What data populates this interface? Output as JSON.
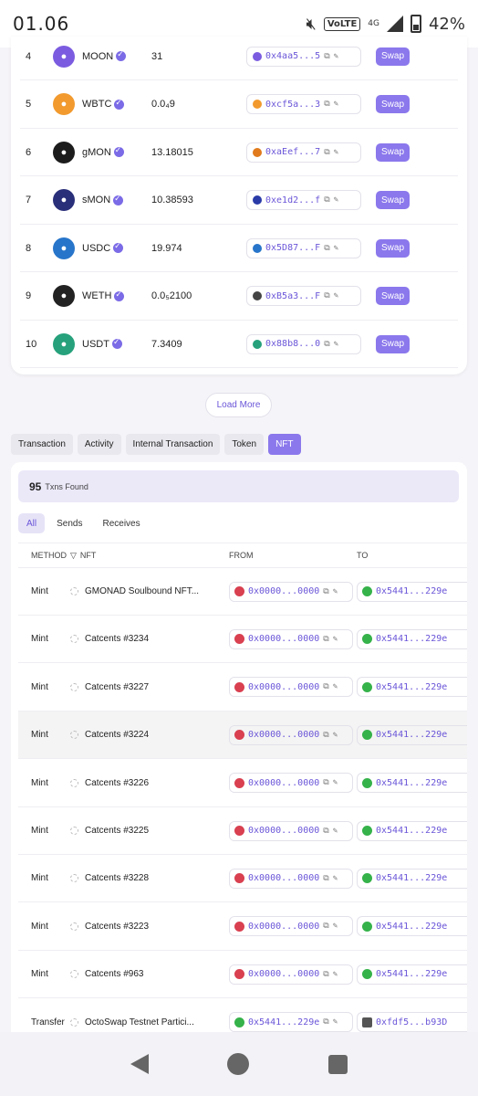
{
  "status_bar": {
    "time": "01.06",
    "volte": "VoLTE",
    "network": "4G",
    "battery": "42%"
  },
  "tokens": [
    {
      "rank": "4",
      "symbol": "MOON",
      "balance": "31",
      "address": "0x4aa5...5",
      "icon": "rocket-icon",
      "color": "#7b5ce0",
      "addr_color": "#7b5ce0"
    },
    {
      "rank": "5",
      "symbol": "WBTC",
      "balance": "0.0₄9",
      "address": "0xcf5a...3",
      "icon": "bitcoin-icon",
      "color": "#f29a2e",
      "addr_color": "#f29a2e"
    },
    {
      "rank": "6",
      "symbol": "gMON",
      "balance": "13.18015",
      "address": "0xaEef...7",
      "icon": "gmon-icon",
      "color": "#1c1c1c",
      "addr_color": "#e07a1c"
    },
    {
      "rank": "7",
      "symbol": "sMON",
      "balance": "10.38593",
      "address": "0xe1d2...f",
      "icon": "smon-icon",
      "color": "#2a2f7a",
      "addr_color": "#2a3ba8"
    },
    {
      "rank": "8",
      "symbol": "USDC",
      "balance": "19.974",
      "address": "0x5D87...F",
      "icon": "usdc-icon",
      "color": "#2775ca",
      "addr_color": "#2775ca"
    },
    {
      "rank": "9",
      "symbol": "WETH",
      "balance": "0.0₅2100",
      "address": "0xB5a3...F",
      "icon": "weth-icon",
      "color": "#222222",
      "addr_color": "#444444"
    },
    {
      "rank": "10",
      "symbol": "USDT",
      "balance": "7.3409",
      "address": "0x88b8...0",
      "icon": "tether-icon",
      "color": "#26a17b",
      "addr_color": "#26a17b"
    }
  ],
  "swap_label": "Swap",
  "load_more": "Load More",
  "tabs": [
    "Transaction",
    "Activity",
    "Internal Transaction",
    "Token",
    "NFT"
  ],
  "txn_found": {
    "count": "95",
    "label": "Txns Found"
  },
  "filter_tabs": [
    "All",
    "Sends",
    "Receives"
  ],
  "table_headers": {
    "method": "METHOD",
    "nft": "NFT",
    "from": "FROM",
    "to": "TO"
  },
  "nft_rows": [
    {
      "method": "Mint",
      "nft": "GMONAD Soulbound NFT...",
      "from": "0x0000...0000",
      "to": "0x5441...229e"
    },
    {
      "method": "Mint",
      "nft": "Catcents #3234",
      "from": "0x0000...0000",
      "to": "0x5441...229e"
    },
    {
      "method": "Mint",
      "nft": "Catcents #3227",
      "from": "0x0000...0000",
      "to": "0x5441...229e"
    },
    {
      "method": "Mint",
      "nft": "Catcents #3224",
      "from": "0x0000...0000",
      "to": "0x5441...229e"
    },
    {
      "method": "Mint",
      "nft": "Catcents #3226",
      "from": "0x0000...0000",
      "to": "0x5441...229e"
    },
    {
      "method": "Mint",
      "nft": "Catcents #3225",
      "from": "0x0000...0000",
      "to": "0x5441...229e"
    },
    {
      "method": "Mint",
      "nft": "Catcents #3228",
      "from": "0x0000...0000",
      "to": "0x5441...229e"
    },
    {
      "method": "Mint",
      "nft": "Catcents #3223",
      "from": "0x0000...0000",
      "to": "0x5441...229e"
    },
    {
      "method": "Mint",
      "nft": "Catcents #963",
      "from": "0x0000...0000",
      "to": "0x5441...229e"
    },
    {
      "method": "Transfer",
      "nft": "OctoSwap Testnet Partici...",
      "from": "0x5441...229e",
      "to": "0xfdf5...b93D"
    }
  ],
  "colors": {
    "accent": "#8b78ec",
    "link": "#6a56d8"
  }
}
